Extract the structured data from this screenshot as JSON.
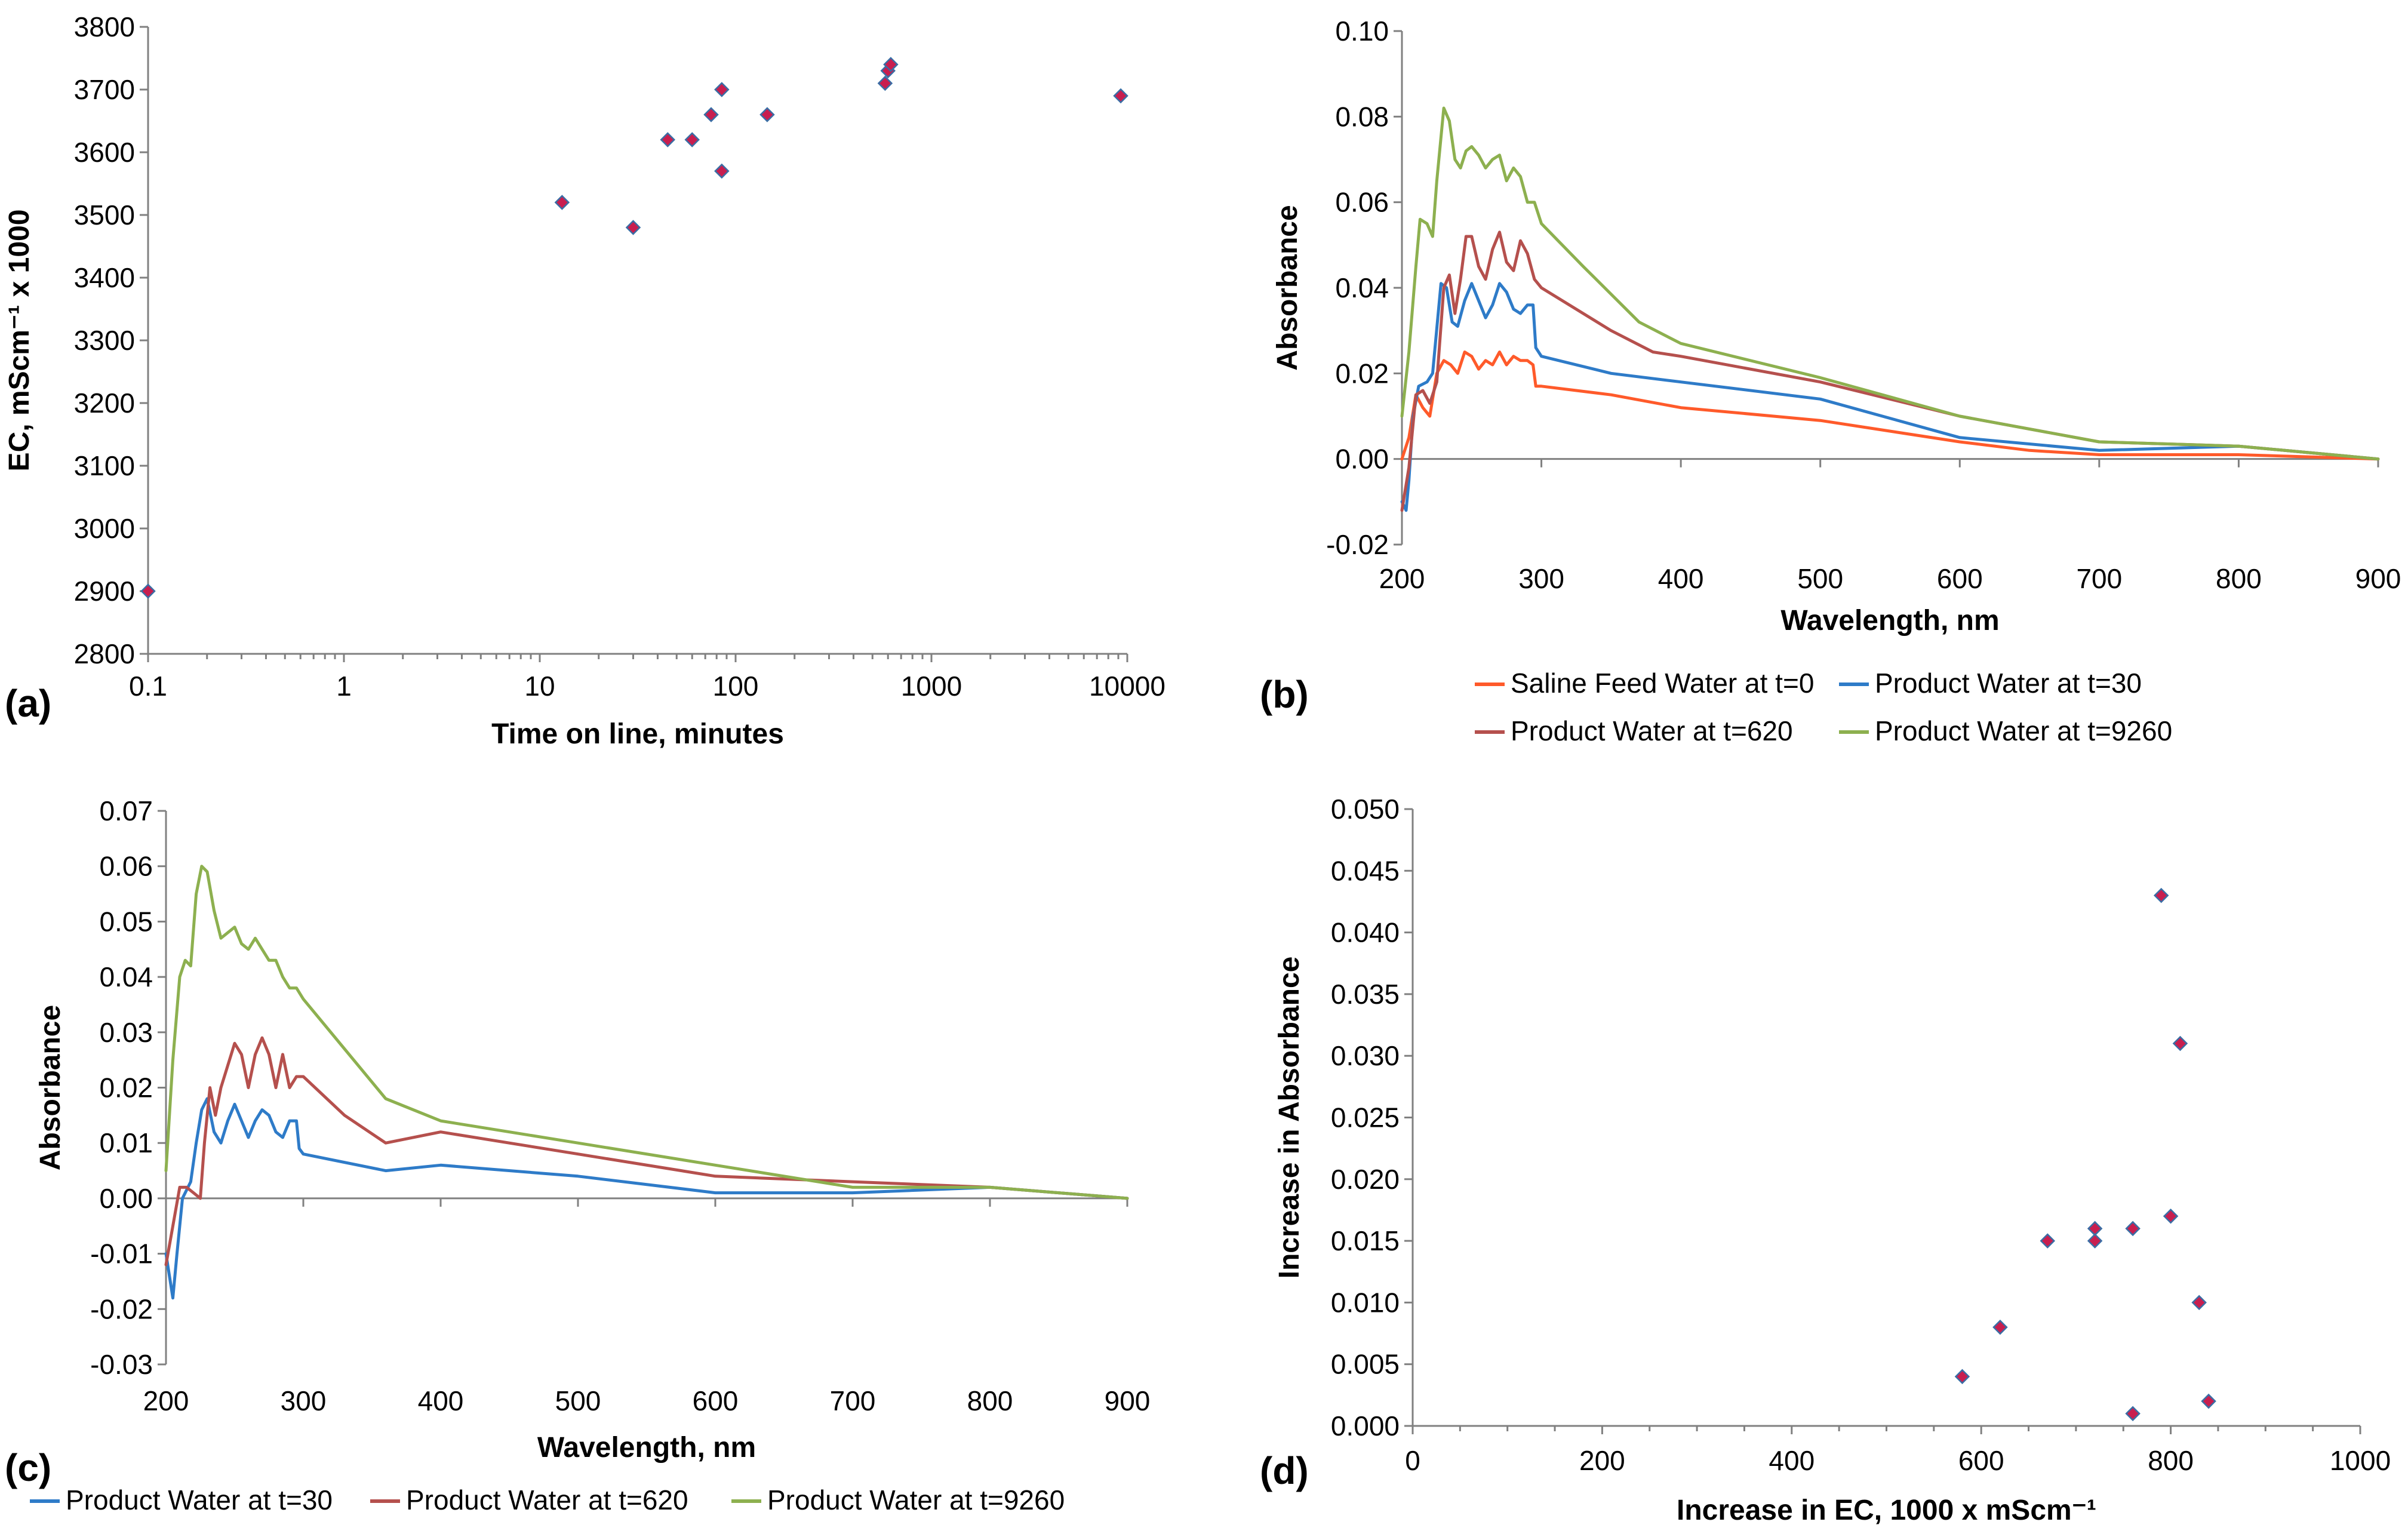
{
  "colors": {
    "feed": "#ff5a2a",
    "t30": "#2e7bc8",
    "t620": "#b5504d",
    "t9260": "#8db04f",
    "marker": "#c81e4f",
    "axis": "#808080"
  },
  "chart_data": [
    {
      "id": "a",
      "panel_label": "(a)",
      "type": "scatter",
      "xscale": "log",
      "xlabel": "Time on line, minutes",
      "ylabel": "EC, mScm⁻¹ x 1000",
      "xlim": [
        0.1,
        10000
      ],
      "ylim": [
        2800,
        3800
      ],
      "xticks": [
        "0.1",
        "1",
        "10",
        "100",
        "1000",
        "10000"
      ],
      "yticks": [
        "2800",
        "2900",
        "3000",
        "3100",
        "3200",
        "3300",
        "3400",
        "3500",
        "3600",
        "3700",
        "3800"
      ],
      "points": [
        [
          0.1,
          2900
        ],
        [
          13,
          3520
        ],
        [
          30,
          3480
        ],
        [
          45,
          3620
        ],
        [
          60,
          3620
        ],
        [
          75,
          3660
        ],
        [
          85,
          3700
        ],
        [
          85,
          3570
        ],
        [
          145,
          3660
        ],
        [
          580,
          3710
        ],
        [
          600,
          3730
        ],
        [
          620,
          3740
        ],
        [
          9260,
          3690
        ]
      ]
    },
    {
      "id": "b",
      "panel_label": "(b)",
      "type": "line",
      "xlabel": "Wavelength, nm",
      "ylabel": "Absorbance",
      "xlim": [
        200,
        900
      ],
      "ylim": [
        -0.02,
        0.1
      ],
      "xticks": [
        "200",
        "300",
        "400",
        "500",
        "600",
        "700",
        "800",
        "900"
      ],
      "yticks": [
        "-0.02",
        "0.00",
        "0.02",
        "0.04",
        "0.06",
        "0.08",
        "0.10"
      ],
      "legend": [
        "Saline Feed Water at t=0",
        "Product Water at t=30",
        "Product Water at t=620",
        "Product Water at t=9260"
      ],
      "series": [
        {
          "name": "Saline Feed Water at t=0",
          "color_key": "feed",
          "points": [
            [
              200,
              0.0
            ],
            [
              205,
              0.005
            ],
            [
              210,
              0.015
            ],
            [
              215,
              0.012
            ],
            [
              220,
              0.01
            ],
            [
              225,
              0.02
            ],
            [
              230,
              0.023
            ],
            [
              235,
              0.022
            ],
            [
              240,
              0.02
            ],
            [
              245,
              0.025
            ],
            [
              250,
              0.024
            ],
            [
              255,
              0.021
            ],
            [
              260,
              0.023
            ],
            [
              265,
              0.022
            ],
            [
              270,
              0.025
            ],
            [
              275,
              0.022
            ],
            [
              280,
              0.024
            ],
            [
              285,
              0.023
            ],
            [
              290,
              0.023
            ],
            [
              294,
              0.022
            ],
            [
              296,
              0.017
            ],
            [
              300,
              0.017
            ],
            [
              350,
              0.015
            ],
            [
              400,
              0.012
            ],
            [
              500,
              0.009
            ],
            [
              600,
              0.004
            ],
            [
              650,
              0.002
            ],
            [
              700,
              0.001
            ],
            [
              800,
              0.001
            ],
            [
              900,
              0.0
            ]
          ]
        },
        {
          "name": "Product Water at t=30",
          "color_key": "t30",
          "points": [
            [
              200,
              -0.01
            ],
            [
              203,
              -0.012
            ],
            [
              205,
              -0.005
            ],
            [
              208,
              0.01
            ],
            [
              212,
              0.017
            ],
            [
              218,
              0.018
            ],
            [
              222,
              0.02
            ],
            [
              228,
              0.041
            ],
            [
              232,
              0.04
            ],
            [
              236,
              0.032
            ],
            [
              240,
              0.031
            ],
            [
              245,
              0.037
            ],
            [
              250,
              0.041
            ],
            [
              255,
              0.037
            ],
            [
              260,
              0.033
            ],
            [
              265,
              0.036
            ],
            [
              270,
              0.041
            ],
            [
              275,
              0.039
            ],
            [
              280,
              0.035
            ],
            [
              285,
              0.034
            ],
            [
              290,
              0.036
            ],
            [
              294,
              0.036
            ],
            [
              296,
              0.026
            ],
            [
              300,
              0.024
            ],
            [
              350,
              0.02
            ],
            [
              400,
              0.018
            ],
            [
              500,
              0.014
            ],
            [
              600,
              0.005
            ],
            [
              700,
              0.002
            ],
            [
              800,
              0.003
            ],
            [
              900,
              0.0
            ]
          ]
        },
        {
          "name": "Product Water at t=620",
          "color_key": "t620",
          "points": [
            [
              200,
              -0.012
            ],
            [
              205,
              -0.002
            ],
            [
              210,
              0.015
            ],
            [
              215,
              0.016
            ],
            [
              220,
              0.013
            ],
            [
              225,
              0.018
            ],
            [
              230,
              0.04
            ],
            [
              234,
              0.043
            ],
            [
              238,
              0.034
            ],
            [
              242,
              0.042
            ],
            [
              246,
              0.052
            ],
            [
              250,
              0.052
            ],
            [
              255,
              0.045
            ],
            [
              260,
              0.042
            ],
            [
              265,
              0.049
            ],
            [
              270,
              0.053
            ],
            [
              275,
              0.046
            ],
            [
              280,
              0.044
            ],
            [
              285,
              0.051
            ],
            [
              290,
              0.048
            ],
            [
              295,
              0.042
            ],
            [
              300,
              0.04
            ],
            [
              350,
              0.03
            ],
            [
              380,
              0.025
            ],
            [
              400,
              0.024
            ],
            [
              500,
              0.018
            ],
            [
              600,
              0.01
            ],
            [
              700,
              0.004
            ],
            [
              800,
              0.003
            ],
            [
              900,
              0.0
            ]
          ]
        },
        {
          "name": "Product Water at t=9260",
          "color_key": "t9260",
          "points": [
            [
              200,
              0.01
            ],
            [
              205,
              0.025
            ],
            [
              210,
              0.045
            ],
            [
              213,
              0.056
            ],
            [
              218,
              0.055
            ],
            [
              222,
              0.052
            ],
            [
              225,
              0.065
            ],
            [
              230,
              0.082
            ],
            [
              234,
              0.079
            ],
            [
              238,
              0.07
            ],
            [
              242,
              0.068
            ],
            [
              246,
              0.072
            ],
            [
              250,
              0.073
            ],
            [
              255,
              0.071
            ],
            [
              260,
              0.068
            ],
            [
              265,
              0.07
            ],
            [
              270,
              0.071
            ],
            [
              275,
              0.065
            ],
            [
              280,
              0.068
            ],
            [
              285,
              0.066
            ],
            [
              290,
              0.06
            ],
            [
              295,
              0.06
            ],
            [
              300,
              0.055
            ],
            [
              330,
              0.045
            ],
            [
              370,
              0.032
            ],
            [
              400,
              0.027
            ],
            [
              500,
              0.019
            ],
            [
              600,
              0.01
            ],
            [
              700,
              0.004
            ],
            [
              800,
              0.003
            ],
            [
              900,
              0.0
            ]
          ]
        }
      ]
    },
    {
      "id": "c",
      "panel_label": "(c)",
      "type": "line",
      "xlabel": "Wavelength, nm",
      "ylabel": "Absorbance",
      "xlim": [
        200,
        900
      ],
      "ylim": [
        -0.03,
        0.07
      ],
      "xticks": [
        "200",
        "300",
        "400",
        "500",
        "600",
        "700",
        "800",
        "900"
      ],
      "yticks": [
        "-0.03",
        "-0.02",
        "-0.01",
        "0.00",
        "0.01",
        "0.02",
        "0.03",
        "0.04",
        "0.05",
        "0.06",
        "0.07"
      ],
      "legend": [
        "Product Water at t=30",
        "Product Water at t=620",
        "Product Water at t=9260"
      ],
      "series": [
        {
          "name": "Product Water at t=30",
          "color_key": "t30",
          "points": [
            [
              200,
              -0.01
            ],
            [
              205,
              -0.018
            ],
            [
              208,
              -0.01
            ],
            [
              212,
              0.0
            ],
            [
              218,
              0.003
            ],
            [
              222,
              0.01
            ],
            [
              226,
              0.016
            ],
            [
              230,
              0.018
            ],
            [
              235,
              0.012
            ],
            [
              240,
              0.01
            ],
            [
              245,
              0.014
            ],
            [
              250,
              0.017
            ],
            [
              255,
              0.014
            ],
            [
              260,
              0.011
            ],
            [
              265,
              0.014
            ],
            [
              270,
              0.016
            ],
            [
              275,
              0.015
            ],
            [
              280,
              0.012
            ],
            [
              285,
              0.011
            ],
            [
              290,
              0.014
            ],
            [
              295,
              0.014
            ],
            [
              297,
              0.009
            ],
            [
              300,
              0.008
            ],
            [
              360,
              0.005
            ],
            [
              400,
              0.006
            ],
            [
              500,
              0.004
            ],
            [
              600,
              0.001
            ],
            [
              700,
              0.001
            ],
            [
              800,
              0.002
            ],
            [
              900,
              0.0
            ]
          ]
        },
        {
          "name": "Product Water at t=620",
          "color_key": "t620",
          "points": [
            [
              200,
              -0.012
            ],
            [
              205,
              -0.005
            ],
            [
              210,
              0.002
            ],
            [
              215,
              0.002
            ],
            [
              220,
              0.001
            ],
            [
              225,
              0.0
            ],
            [
              228,
              0.01
            ],
            [
              232,
              0.02
            ],
            [
              236,
              0.015
            ],
            [
              240,
              0.02
            ],
            [
              245,
              0.024
            ],
            [
              250,
              0.028
            ],
            [
              255,
              0.026
            ],
            [
              260,
              0.02
            ],
            [
              265,
              0.026
            ],
            [
              270,
              0.029
            ],
            [
              275,
              0.026
            ],
            [
              280,
              0.02
            ],
            [
              285,
              0.026
            ],
            [
              290,
              0.02
            ],
            [
              295,
              0.022
            ],
            [
              300,
              0.022
            ],
            [
              330,
              0.015
            ],
            [
              360,
              0.01
            ],
            [
              400,
              0.012
            ],
            [
              500,
              0.008
            ],
            [
              600,
              0.004
            ],
            [
              700,
              0.003
            ],
            [
              800,
              0.002
            ],
            [
              900,
              0.0
            ]
          ]
        },
        {
          "name": "Product Water at t=9260",
          "color_key": "t9260",
          "points": [
            [
              200,
              0.005
            ],
            [
              205,
              0.025
            ],
            [
              210,
              0.04
            ],
            [
              214,
              0.043
            ],
            [
              218,
              0.042
            ],
            [
              222,
              0.055
            ],
            [
              226,
              0.06
            ],
            [
              230,
              0.059
            ],
            [
              235,
              0.052
            ],
            [
              240,
              0.047
            ],
            [
              245,
              0.048
            ],
            [
              250,
              0.049
            ],
            [
              255,
              0.046
            ],
            [
              260,
              0.045
            ],
            [
              265,
              0.047
            ],
            [
              270,
              0.045
            ],
            [
              275,
              0.043
            ],
            [
              280,
              0.043
            ],
            [
              285,
              0.04
            ],
            [
              290,
              0.038
            ],
            [
              295,
              0.038
            ],
            [
              300,
              0.036
            ],
            [
              330,
              0.027
            ],
            [
              360,
              0.018
            ],
            [
              400,
              0.014
            ],
            [
              500,
              0.01
            ],
            [
              600,
              0.006
            ],
            [
              700,
              0.002
            ],
            [
              800,
              0.002
            ],
            [
              900,
              0.0
            ]
          ]
        }
      ]
    },
    {
      "id": "d",
      "panel_label": "(d)",
      "type": "scatter",
      "xlabel": "Increase in EC, 1000 x mScm⁻¹",
      "ylabel": "Increase in Absorbance",
      "xlim": [
        0,
        1000
      ],
      "ylim": [
        0,
        0.05
      ],
      "xticks": [
        "0",
        "200",
        "400",
        "600",
        "800",
        "1000"
      ],
      "yticks": [
        "0.000",
        "0.005",
        "0.010",
        "0.015",
        "0.020",
        "0.025",
        "0.030",
        "0.035",
        "0.040",
        "0.045",
        "0.050"
      ],
      "points": [
        [
          580,
          0.004
        ],
        [
          620,
          0.008
        ],
        [
          670,
          0.015
        ],
        [
          720,
          0.016
        ],
        [
          720,
          0.015
        ],
        [
          760,
          0.016
        ],
        [
          760,
          0.001
        ],
        [
          790,
          0.043
        ],
        [
          800,
          0.017
        ],
        [
          810,
          0.031
        ],
        [
          830,
          0.01
        ],
        [
          840,
          0.002
        ]
      ]
    }
  ]
}
